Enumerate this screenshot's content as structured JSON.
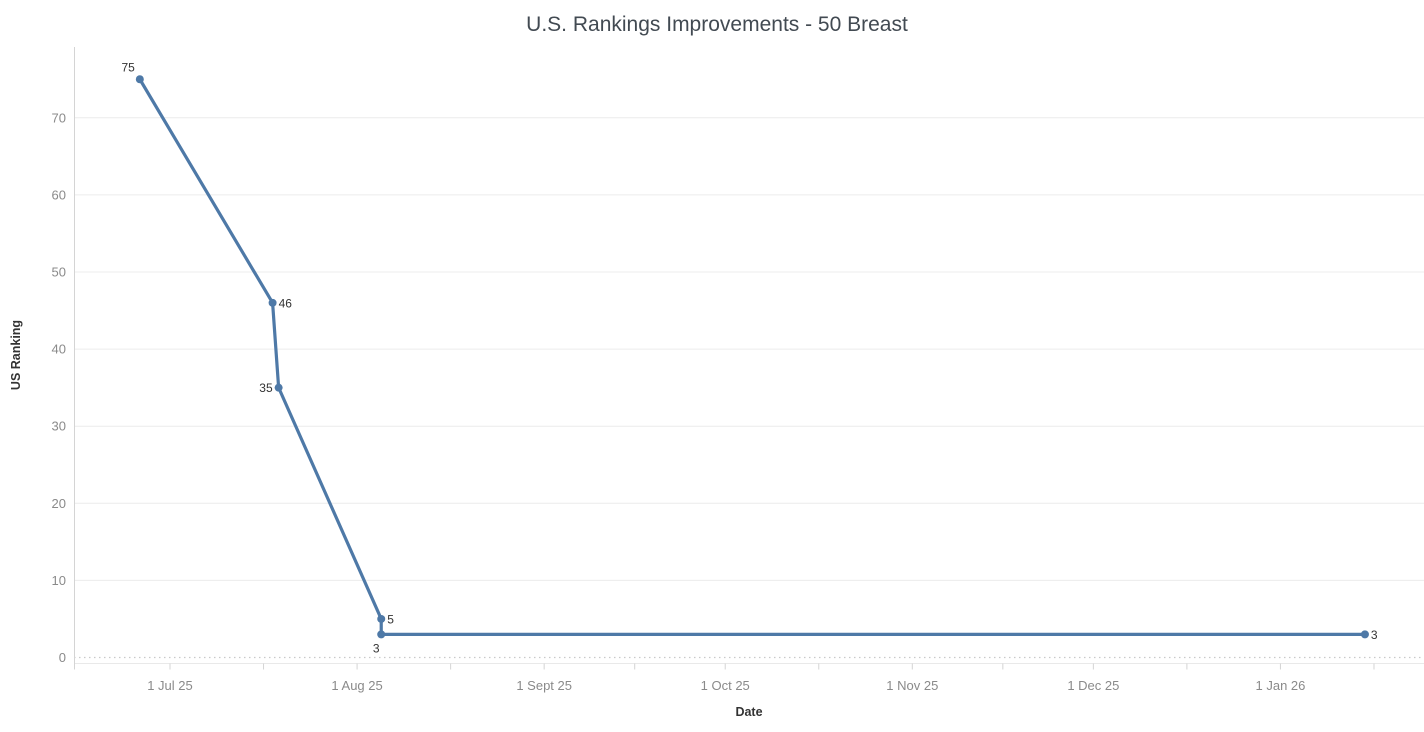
{
  "chart": {
    "title": "U.S. Rankings Improvements - 50 Breast",
    "xlabel": "Date",
    "ylabel": "US Ranking"
  },
  "chart_data": {
    "type": "line",
    "title": "U.S. Rankings Improvements - 50 Breast",
    "xlabel": "Date",
    "ylabel": "US Ranking",
    "grid": "horizontal",
    "legend": "none",
    "x_axis": {
      "tick_labels": [
        "1 Jul 25",
        "1 Aug 25",
        "1 Sept 25",
        "1 Oct 25",
        "1 Nov 25",
        "1 Dec 25",
        "1 Jan 26"
      ],
      "tick_days_from_jul1": [
        0,
        31,
        62,
        92,
        123,
        153,
        184
      ],
      "minor_tick_days_from_jul1": [
        15.5,
        46.5,
        77,
        107.5,
        138,
        168.5,
        199.5
      ]
    },
    "y_axis": {
      "ticks": [
        0,
        10,
        20,
        30,
        40,
        50,
        60,
        70
      ],
      "range": [
        0,
        79
      ]
    },
    "series": [
      {
        "name": "US Ranking",
        "color": "#4e79a7",
        "points": [
          {
            "date_approx": "26 Jun 25",
            "days_from_jul1": -5,
            "value": 75,
            "label": "75",
            "label_pos": "above-left"
          },
          {
            "date_approx": "18 Jul 25",
            "days_from_jul1": 17,
            "value": 46,
            "label": "46",
            "label_pos": "right"
          },
          {
            "date_approx": "19 Jul 25",
            "days_from_jul1": 18,
            "value": 35,
            "label": "35",
            "label_pos": "left"
          },
          {
            "date_approx": "5 Aug 25",
            "days_from_jul1": 35,
            "value": 5,
            "label": "5",
            "label_pos": "right"
          },
          {
            "date_approx": "5 Aug 25",
            "days_from_jul1": 35,
            "value": 3,
            "label": "3",
            "label_pos": "below"
          },
          {
            "date_approx": "15 Jan 26",
            "days_from_jul1": 198,
            "value": 3,
            "label": "3",
            "label_pos": "right"
          }
        ]
      }
    ],
    "colors": {
      "line": "#4e79a7",
      "point": "#4e79a7",
      "gridline": "#ececec",
      "zero_line": "#c9c9c9",
      "axis_line": "#d4d4d4",
      "tick_label": "#8a8a8a",
      "axis_title": "#333333",
      "data_label": "#333333",
      "title": "#424a52",
      "background": "#ffffff"
    }
  }
}
